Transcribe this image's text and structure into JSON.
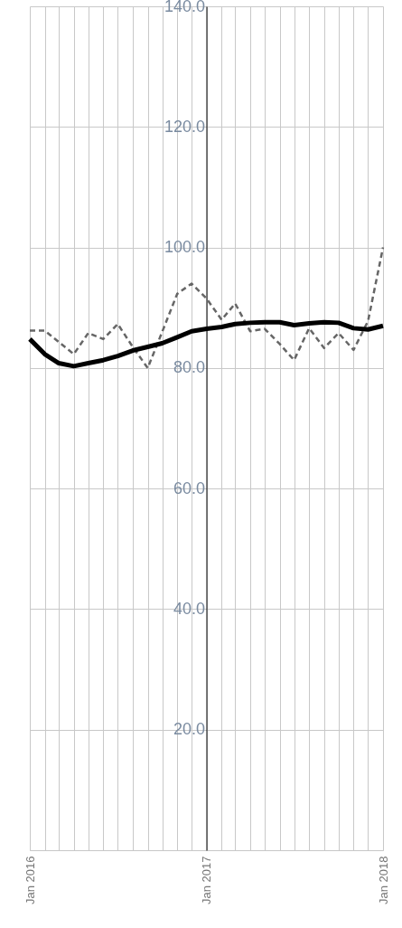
{
  "chart_data": {
    "type": "line",
    "x": [
      "2016-01",
      "2016-02",
      "2016-03",
      "2016-04",
      "2016-05",
      "2016-06",
      "2016-07",
      "2016-08",
      "2016-09",
      "2016-10",
      "2016-11",
      "2016-12",
      "2017-01",
      "2017-02",
      "2017-03",
      "2017-04",
      "2017-05",
      "2017-06",
      "2017-07",
      "2017-08",
      "2017-09",
      "2017-10",
      "2017-11",
      "2017-12",
      "2018-01"
    ],
    "series": [
      {
        "color": "#666666",
        "line_style": "dashed",
        "values": [
          86.2,
          86.2,
          84.3,
          82.3,
          85.8,
          84.8,
          87.3,
          83.5,
          80,
          86,
          92.3,
          94,
          91.5,
          88,
          90.7,
          86.1,
          86.5,
          84,
          81.3,
          86.6,
          83.3,
          85.8,
          83,
          87.8,
          100
        ]
      },
      {
        "color": "#000000",
        "line_style": "solid",
        "values": [
          84.8,
          82.3,
          80.8,
          80.3,
          80.8,
          81.3,
          82,
          82.9,
          83.5,
          84.1,
          85.1,
          86.1,
          86.5,
          86.8,
          87.3,
          87.5,
          87.6,
          87.6,
          87.1,
          87.4,
          87.6,
          87.5,
          86.6,
          86.4,
          87
        ]
      }
    ],
    "xlim": [
      "2016-01",
      "2018-01"
    ],
    "xticks": [
      {
        "value": "2016-01",
        "label": "Jan 2016"
      },
      {
        "value": "2016-02",
        "label": null
      },
      {
        "value": "2016-03",
        "label": null
      },
      {
        "value": "2016-04",
        "label": null
      },
      {
        "value": "2016-05",
        "label": null
      },
      {
        "value": "2016-06",
        "label": null
      },
      {
        "value": "2016-07",
        "label": null
      },
      {
        "value": "2016-08",
        "label": null
      },
      {
        "value": "2016-09",
        "label": null
      },
      {
        "value": "2016-10",
        "label": null
      },
      {
        "value": "2016-11",
        "label": null
      },
      {
        "value": "2016-12",
        "label": null
      },
      {
        "value": "2017-01",
        "label": "Jan 2017"
      },
      {
        "value": "2017-02",
        "label": null
      },
      {
        "value": "2017-03",
        "label": null
      },
      {
        "value": "2017-04",
        "label": null
      },
      {
        "value": "2017-05",
        "label": null
      },
      {
        "value": "2017-06",
        "label": null
      },
      {
        "value": "2017-07",
        "label": null
      },
      {
        "value": "2017-08",
        "label": null
      },
      {
        "value": "2017-09",
        "label": null
      },
      {
        "value": "2017-10",
        "label": null
      },
      {
        "value": "2017-11",
        "label": null
      },
      {
        "value": "2017-12",
        "label": null
      },
      {
        "value": "2018-01",
        "label": "Jan 2018"
      }
    ],
    "ylim": [
      0,
      140
    ],
    "yticks": [
      {
        "value": 0,
        "label": null
      },
      {
        "value": 20,
        "label": "20.0"
      },
      {
        "value": 40,
        "label": "40.0"
      },
      {
        "value": 60,
        "label": "60.0"
      },
      {
        "value": 80,
        "label": "80.0"
      },
      {
        "value": 100,
        "label": "100.0"
      },
      {
        "value": 120,
        "label": "120.0"
      },
      {
        "value": 140,
        "label": "140.0"
      }
    ],
    "grid": true,
    "marker": "none"
  }
}
